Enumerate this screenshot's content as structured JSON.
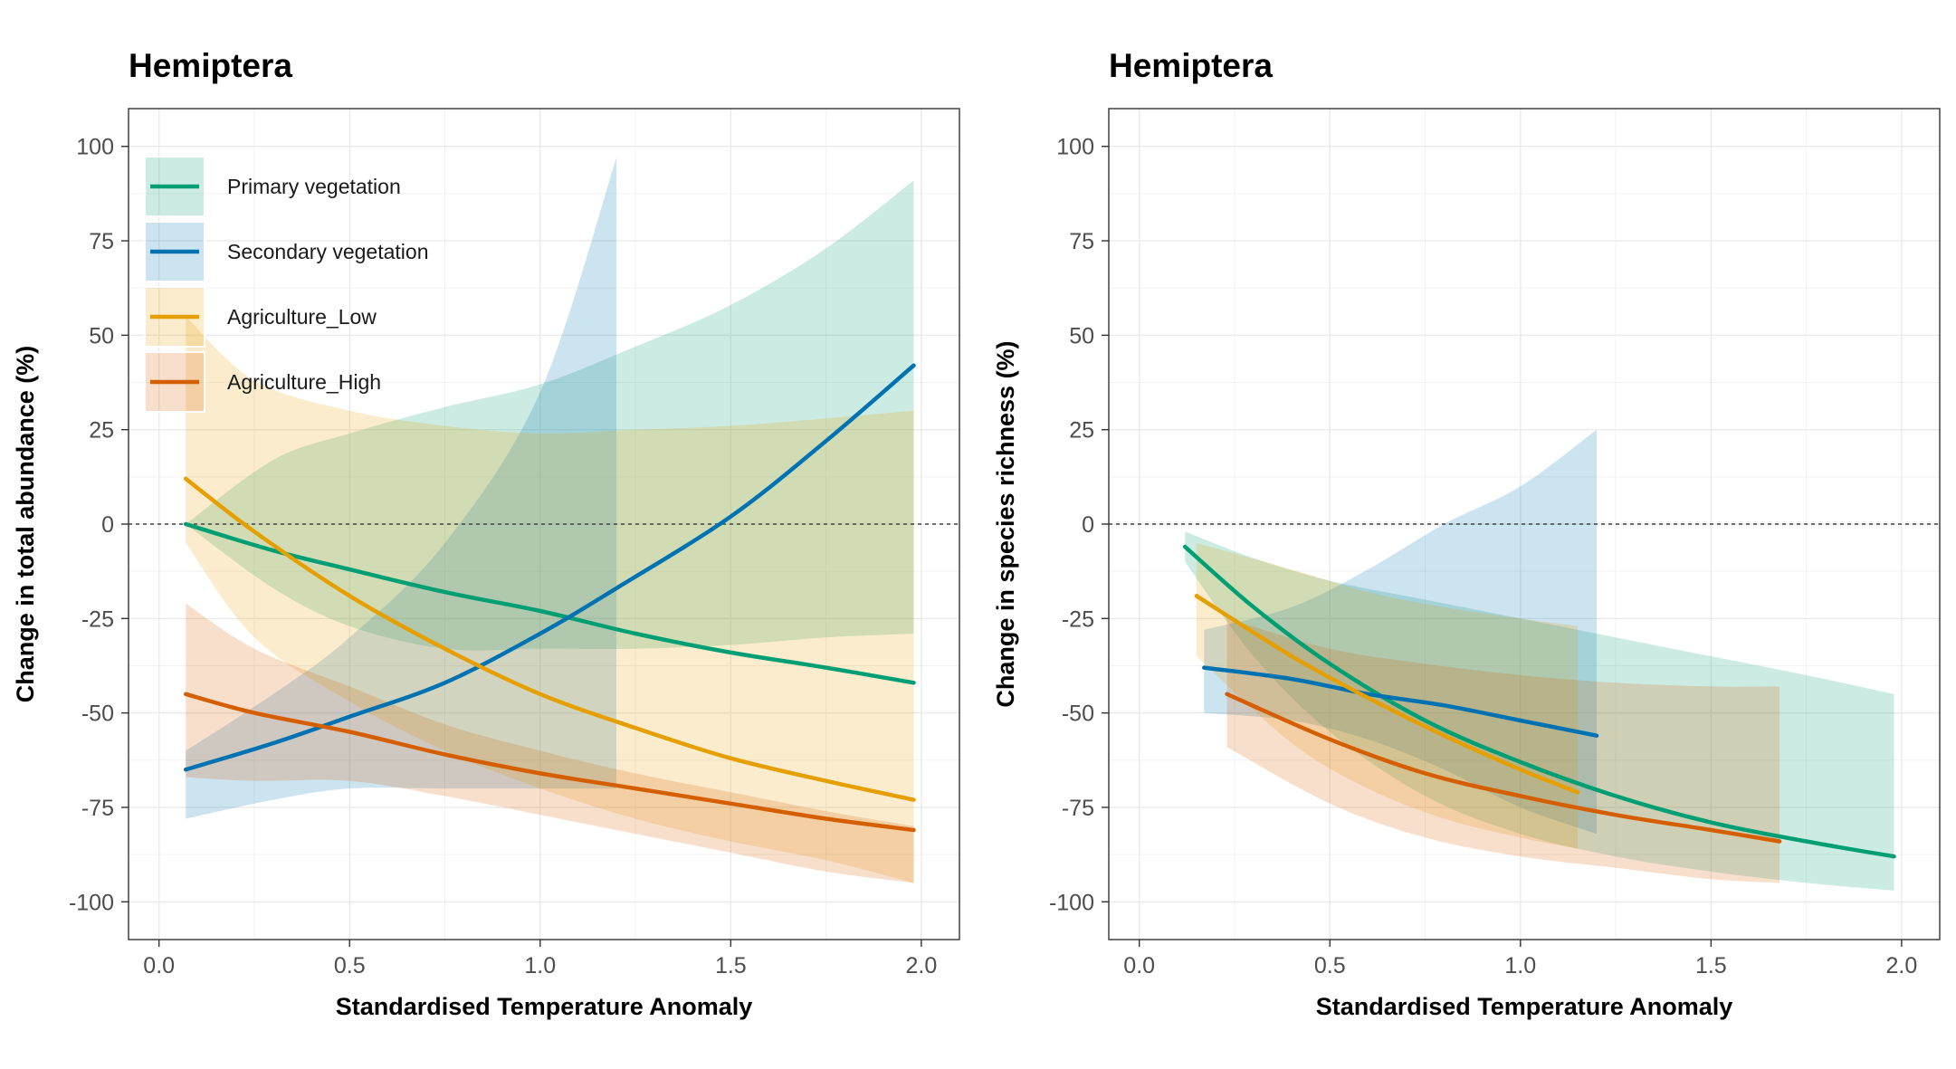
{
  "chart_data": [
    {
      "type": "line",
      "title": "Hemiptera",
      "xlabel": "Standardised Temperature Anomaly",
      "ylabel": "Change in total abundance (%)",
      "xlim": [
        -0.08,
        2.1
      ],
      "ylim": [
        -110,
        110
      ],
      "xticks": [
        0.0,
        0.5,
        1.0,
        1.5,
        2.0
      ],
      "xtick_labels": [
        "0.0",
        "0.5",
        "1.0",
        "1.5",
        "2.0"
      ],
      "yticks": [
        100,
        75,
        50,
        25,
        0,
        -25,
        -50,
        -75,
        -100
      ],
      "ytick_labels": [
        "100",
        "75",
        "50",
        "25",
        "0",
        "-25",
        "-50",
        "-75",
        "-100"
      ],
      "reference_line": 0,
      "grid": true,
      "legend": "top-left",
      "series": [
        {
          "name": "Primary vegetation",
          "color": "#009E73",
          "x": [
            0.07,
            0.3,
            0.5,
            0.75,
            1.0,
            1.25,
            1.5,
            1.75,
            1.98
          ],
          "y": [
            0,
            -7,
            -12,
            -18,
            -23,
            -29,
            -34,
            -38,
            -42
          ],
          "upper": [
            0,
            17,
            24,
            31,
            37,
            47,
            58,
            73,
            91
          ],
          "lower": [
            0,
            -17,
            -27,
            -33,
            -33,
            -33,
            -32,
            -30,
            -29
          ]
        },
        {
          "name": "Secondary vegetation",
          "color": "#0072B2",
          "x": [
            0.07,
            0.3,
            0.5,
            0.75,
            1.0,
            1.2,
            1.5,
            1.75,
            1.98
          ],
          "y": [
            -65,
            -58,
            -51,
            -42,
            -29,
            -17,
            2,
            22,
            42
          ],
          "upper": [
            -60,
            -45,
            -30,
            -5,
            35,
            97,
            null,
            null,
            null
          ],
          "lower": [
            -78,
            -73,
            -70,
            -70,
            -70,
            -70,
            null,
            null,
            null
          ]
        },
        {
          "name": "Agriculture_Low",
          "color": "#E69F00",
          "x": [
            0.07,
            0.25,
            0.5,
            0.75,
            1.0,
            1.25,
            1.5,
            1.75,
            1.98
          ],
          "y": [
            12,
            -2,
            -19,
            -33,
            -45,
            -54,
            -62,
            -68,
            -73
          ],
          "upper": [
            55,
            38,
            30,
            26,
            24,
            25,
            26,
            28,
            30
          ],
          "lower": [
            -5,
            -30,
            -47,
            -60,
            -70,
            -78,
            -84,
            -89,
            -95
          ]
        },
        {
          "name": "Agriculture_High",
          "color": "#D55E00",
          "x": [
            0.07,
            0.25,
            0.5,
            0.75,
            1.0,
            1.25,
            1.5,
            1.75,
            1.98
          ],
          "y": [
            -45,
            -50,
            -55,
            -61,
            -66,
            -70,
            -74,
            -78,
            -81
          ],
          "upper": [
            -21,
            -33,
            -43,
            -53,
            -60,
            -66,
            -71,
            -76,
            -80
          ],
          "lower": [
            -67,
            -68,
            -68,
            -72,
            -77,
            -82,
            -87,
            -92,
            -95
          ]
        }
      ]
    },
    {
      "type": "line",
      "title": "Hemiptera",
      "xlabel": "Standardised Temperature Anomaly",
      "ylabel": "Change in species richness (%)",
      "xlim": [
        -0.08,
        2.1
      ],
      "ylim": [
        -110,
        110
      ],
      "xticks": [
        0.0,
        0.5,
        1.0,
        1.5,
        2.0
      ],
      "xtick_labels": [
        "0.0",
        "0.5",
        "1.0",
        "1.5",
        "2.0"
      ],
      "yticks": [
        100,
        75,
        50,
        25,
        0,
        -25,
        -50,
        -75,
        -100
      ],
      "ytick_labels": [
        "100",
        "75",
        "50",
        "25",
        "0",
        "-25",
        "-50",
        "-75",
        "-100"
      ],
      "reference_line": 0,
      "grid": true,
      "series": [
        {
          "name": "Primary vegetation",
          "color": "#009E73",
          "x": [
            0.12,
            0.3,
            0.5,
            0.75,
            1.0,
            1.25,
            1.5,
            1.75,
            1.98
          ],
          "y": [
            -6,
            -22,
            -37,
            -52,
            -63,
            -72,
            -79,
            -84,
            -88
          ],
          "upper": [
            -2,
            -9,
            -15,
            -20,
            -25,
            -30,
            -35,
            -40,
            -45
          ],
          "lower": [
            -10,
            -35,
            -55,
            -72,
            -82,
            -88,
            -92,
            -95,
            -97
          ]
        },
        {
          "name": "Secondary vegetation",
          "color": "#0072B2",
          "x": [
            0.17,
            0.4,
            0.6,
            0.8,
            1.0,
            1.2
          ],
          "y": [
            -38,
            -41,
            -45,
            -48,
            -52,
            -56
          ],
          "upper": [
            -28,
            -22,
            -12,
            0,
            10,
            25
          ],
          "lower": [
            -50,
            -52,
            -57,
            -65,
            -75,
            -82
          ]
        },
        {
          "name": "Agriculture_Low",
          "color": "#E69F00",
          "x": [
            0.15,
            0.4,
            0.6,
            0.8,
            1.0,
            1.15
          ],
          "y": [
            -19,
            -35,
            -46,
            -56,
            -65,
            -71
          ],
          "upper": [
            -5,
            -12,
            -18,
            -22,
            -25,
            -27
          ],
          "lower": [
            -35,
            -58,
            -70,
            -78,
            -83,
            -86
          ]
        },
        {
          "name": "Agriculture_High",
          "color": "#D55E00",
          "x": [
            0.23,
            0.5,
            0.75,
            1.0,
            1.25,
            1.5,
            1.68
          ],
          "y": [
            -45,
            -57,
            -66,
            -72,
            -77,
            -81,
            -84
          ],
          "upper": [
            -25,
            -33,
            -37,
            -40,
            -42,
            -43,
            -43
          ],
          "lower": [
            -59,
            -74,
            -83,
            -88,
            -91,
            -94,
            -95
          ]
        }
      ]
    }
  ]
}
